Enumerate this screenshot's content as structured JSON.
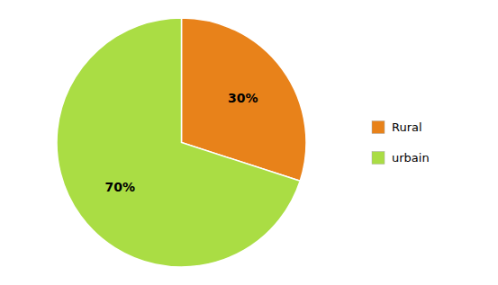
{
  "chart_data": {
    "type": "pie",
    "categories": [
      "Rural",
      "urbain"
    ],
    "values": [
      30,
      70
    ],
    "value_labels": [
      "30%",
      "70%"
    ],
    "colors": [
      "#E8821A",
      "#AADD44"
    ],
    "data_labels": true,
    "legend": "right"
  }
}
